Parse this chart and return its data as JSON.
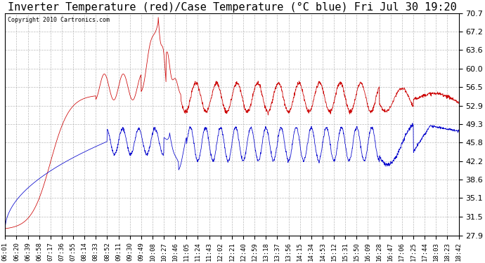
{
  "title": "Inverter Temperature (red)/Case Temperature (°C blue) Fri Jul 30 19:20",
  "copyright": "Copyright 2010 Cartronics.com",
  "background_color": "#ffffff",
  "plot_bg_color": "#ffffff",
  "grid_color": "#aaaaaa",
  "red_color": "#cc0000",
  "blue_color": "#0000cc",
  "ylim": [
    27.9,
    70.7
  ],
  "yticks": [
    27.9,
    31.5,
    35.1,
    38.6,
    42.2,
    45.8,
    49.3,
    52.9,
    56.5,
    60.0,
    63.6,
    67.2,
    70.7
  ],
  "xlabel_fontsize": 6.5,
  "ylabel_fontsize": 8,
  "title_fontsize": 11,
  "xtick_labels": [
    "06:01",
    "06:20",
    "06:39",
    "06:58",
    "07:17",
    "07:36",
    "07:55",
    "08:14",
    "08:33",
    "08:52",
    "09:11",
    "09:30",
    "09:49",
    "10:08",
    "10:27",
    "10:46",
    "11:05",
    "11:24",
    "11:43",
    "12:02",
    "12:21",
    "12:40",
    "12:59",
    "13:18",
    "13:37",
    "13:56",
    "14:15",
    "14:34",
    "14:53",
    "15:12",
    "15:31",
    "15:50",
    "16:09",
    "16:28",
    "16:47",
    "17:06",
    "17:25",
    "17:44",
    "18:03",
    "18:23",
    "18:42"
  ]
}
